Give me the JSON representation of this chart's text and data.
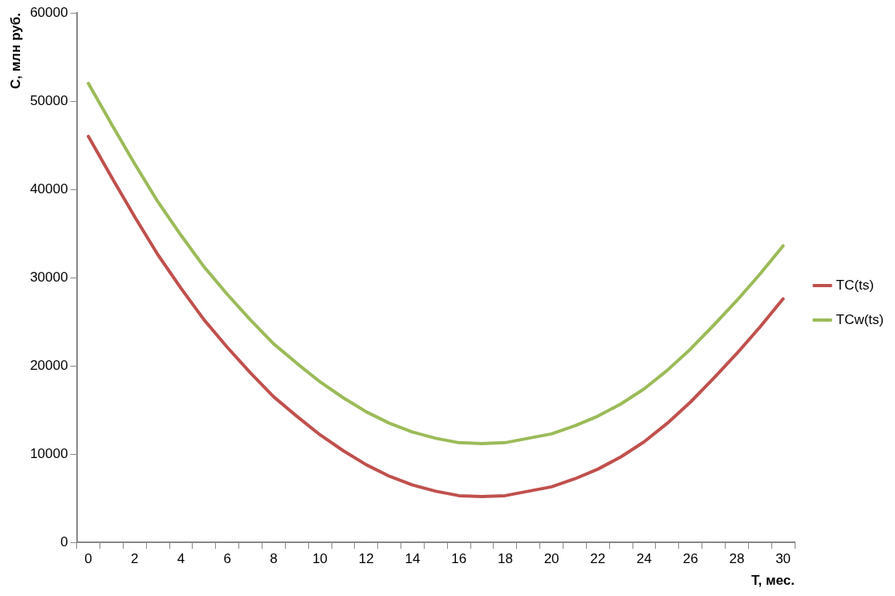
{
  "chart_data": {
    "type": "line",
    "xlabel": "Т, мес.",
    "ylabel": "С, млн руб.",
    "x": [
      0,
      1,
      2,
      3,
      4,
      5,
      6,
      7,
      8,
      9,
      10,
      11,
      12,
      13,
      14,
      15,
      16,
      17,
      18,
      19,
      20,
      21,
      22,
      23,
      24,
      25,
      26,
      27,
      28,
      29,
      30
    ],
    "series": [
      {
        "name": "TC(ts)",
        "color": "#c0504d",
        "values": [
          46000,
          41400,
          36900,
          32600,
          28800,
          25200,
          22100,
          19200,
          16500,
          14300,
          12200,
          10400,
          8800,
          7500,
          6500,
          5800,
          5300,
          5200,
          5300,
          5800,
          6300,
          7200,
          8300,
          9700,
          11400,
          13500,
          15900,
          18600,
          21400,
          24400,
          27600
        ]
      },
      {
        "name": "TCw(ts)",
        "color": "#9bbb59",
        "values": [
          52000,
          47400,
          42900,
          38600,
          34800,
          31200,
          28100,
          25200,
          22500,
          20300,
          18200,
          16400,
          14800,
          13500,
          12500,
          11800,
          11300,
          11200,
          11300,
          11800,
          12300,
          13200,
          14300,
          15700,
          17400,
          19500,
          21900,
          24600,
          27400,
          30400,
          33600
        ]
      }
    ],
    "xlim": [
      -0.5,
      30.5
    ],
    "xticks": [
      {
        "value": -0.5,
        "label": null
      },
      0,
      {
        "value": 0.5,
        "label": null
      },
      {
        "value": 1.5,
        "label": null
      },
      2,
      {
        "value": 2.5,
        "label": null
      },
      {
        "value": 3.5,
        "label": null
      },
      4,
      {
        "value": 4.5,
        "label": null
      },
      {
        "value": 5.5,
        "label": null
      },
      6,
      {
        "value": 6.5,
        "label": null
      },
      {
        "value": 7.5,
        "label": null
      },
      8,
      {
        "value": 8.5,
        "label": null
      },
      {
        "value": 9.5,
        "label": null
      },
      10,
      {
        "value": 10.5,
        "label": null
      },
      {
        "value": 11.5,
        "label": null
      },
      12,
      {
        "value": 12.5,
        "label": null
      },
      {
        "value": 13.5,
        "label": null
      },
      14,
      {
        "value": 14.5,
        "label": null
      },
      {
        "value": 15.5,
        "label": null
      },
      16,
      {
        "value": 16.5,
        "label": null
      },
      {
        "value": 17.5,
        "label": null
      },
      18,
      {
        "value": 18.5,
        "label": null
      },
      {
        "value": 19.5,
        "label": null
      },
      20,
      {
        "value": 20.5,
        "label": null
      },
      {
        "value": 21.5,
        "label": null
      },
      22,
      {
        "value": 22.5,
        "label": null
      },
      {
        "value": 23.5,
        "label": null
      },
      24,
      {
        "value": 24.5,
        "label": null
      },
      {
        "value": 25.5,
        "label": null
      },
      26,
      {
        "value": 26.5,
        "label": null
      },
      {
        "value": 27.5,
        "label": null
      },
      28,
      {
        "value": 28.5,
        "label": null
      },
      {
        "value": 29.5,
        "label": null
      },
      30,
      {
        "value": 30.5,
        "label": null
      }
    ],
    "ylim": [
      0,
      60000
    ],
    "yticks": [
      0,
      10000,
      20000,
      30000,
      40000,
      50000,
      60000
    ],
    "grid": false,
    "legend": "right",
    "marker": "none",
    "line_style": "solid"
  }
}
